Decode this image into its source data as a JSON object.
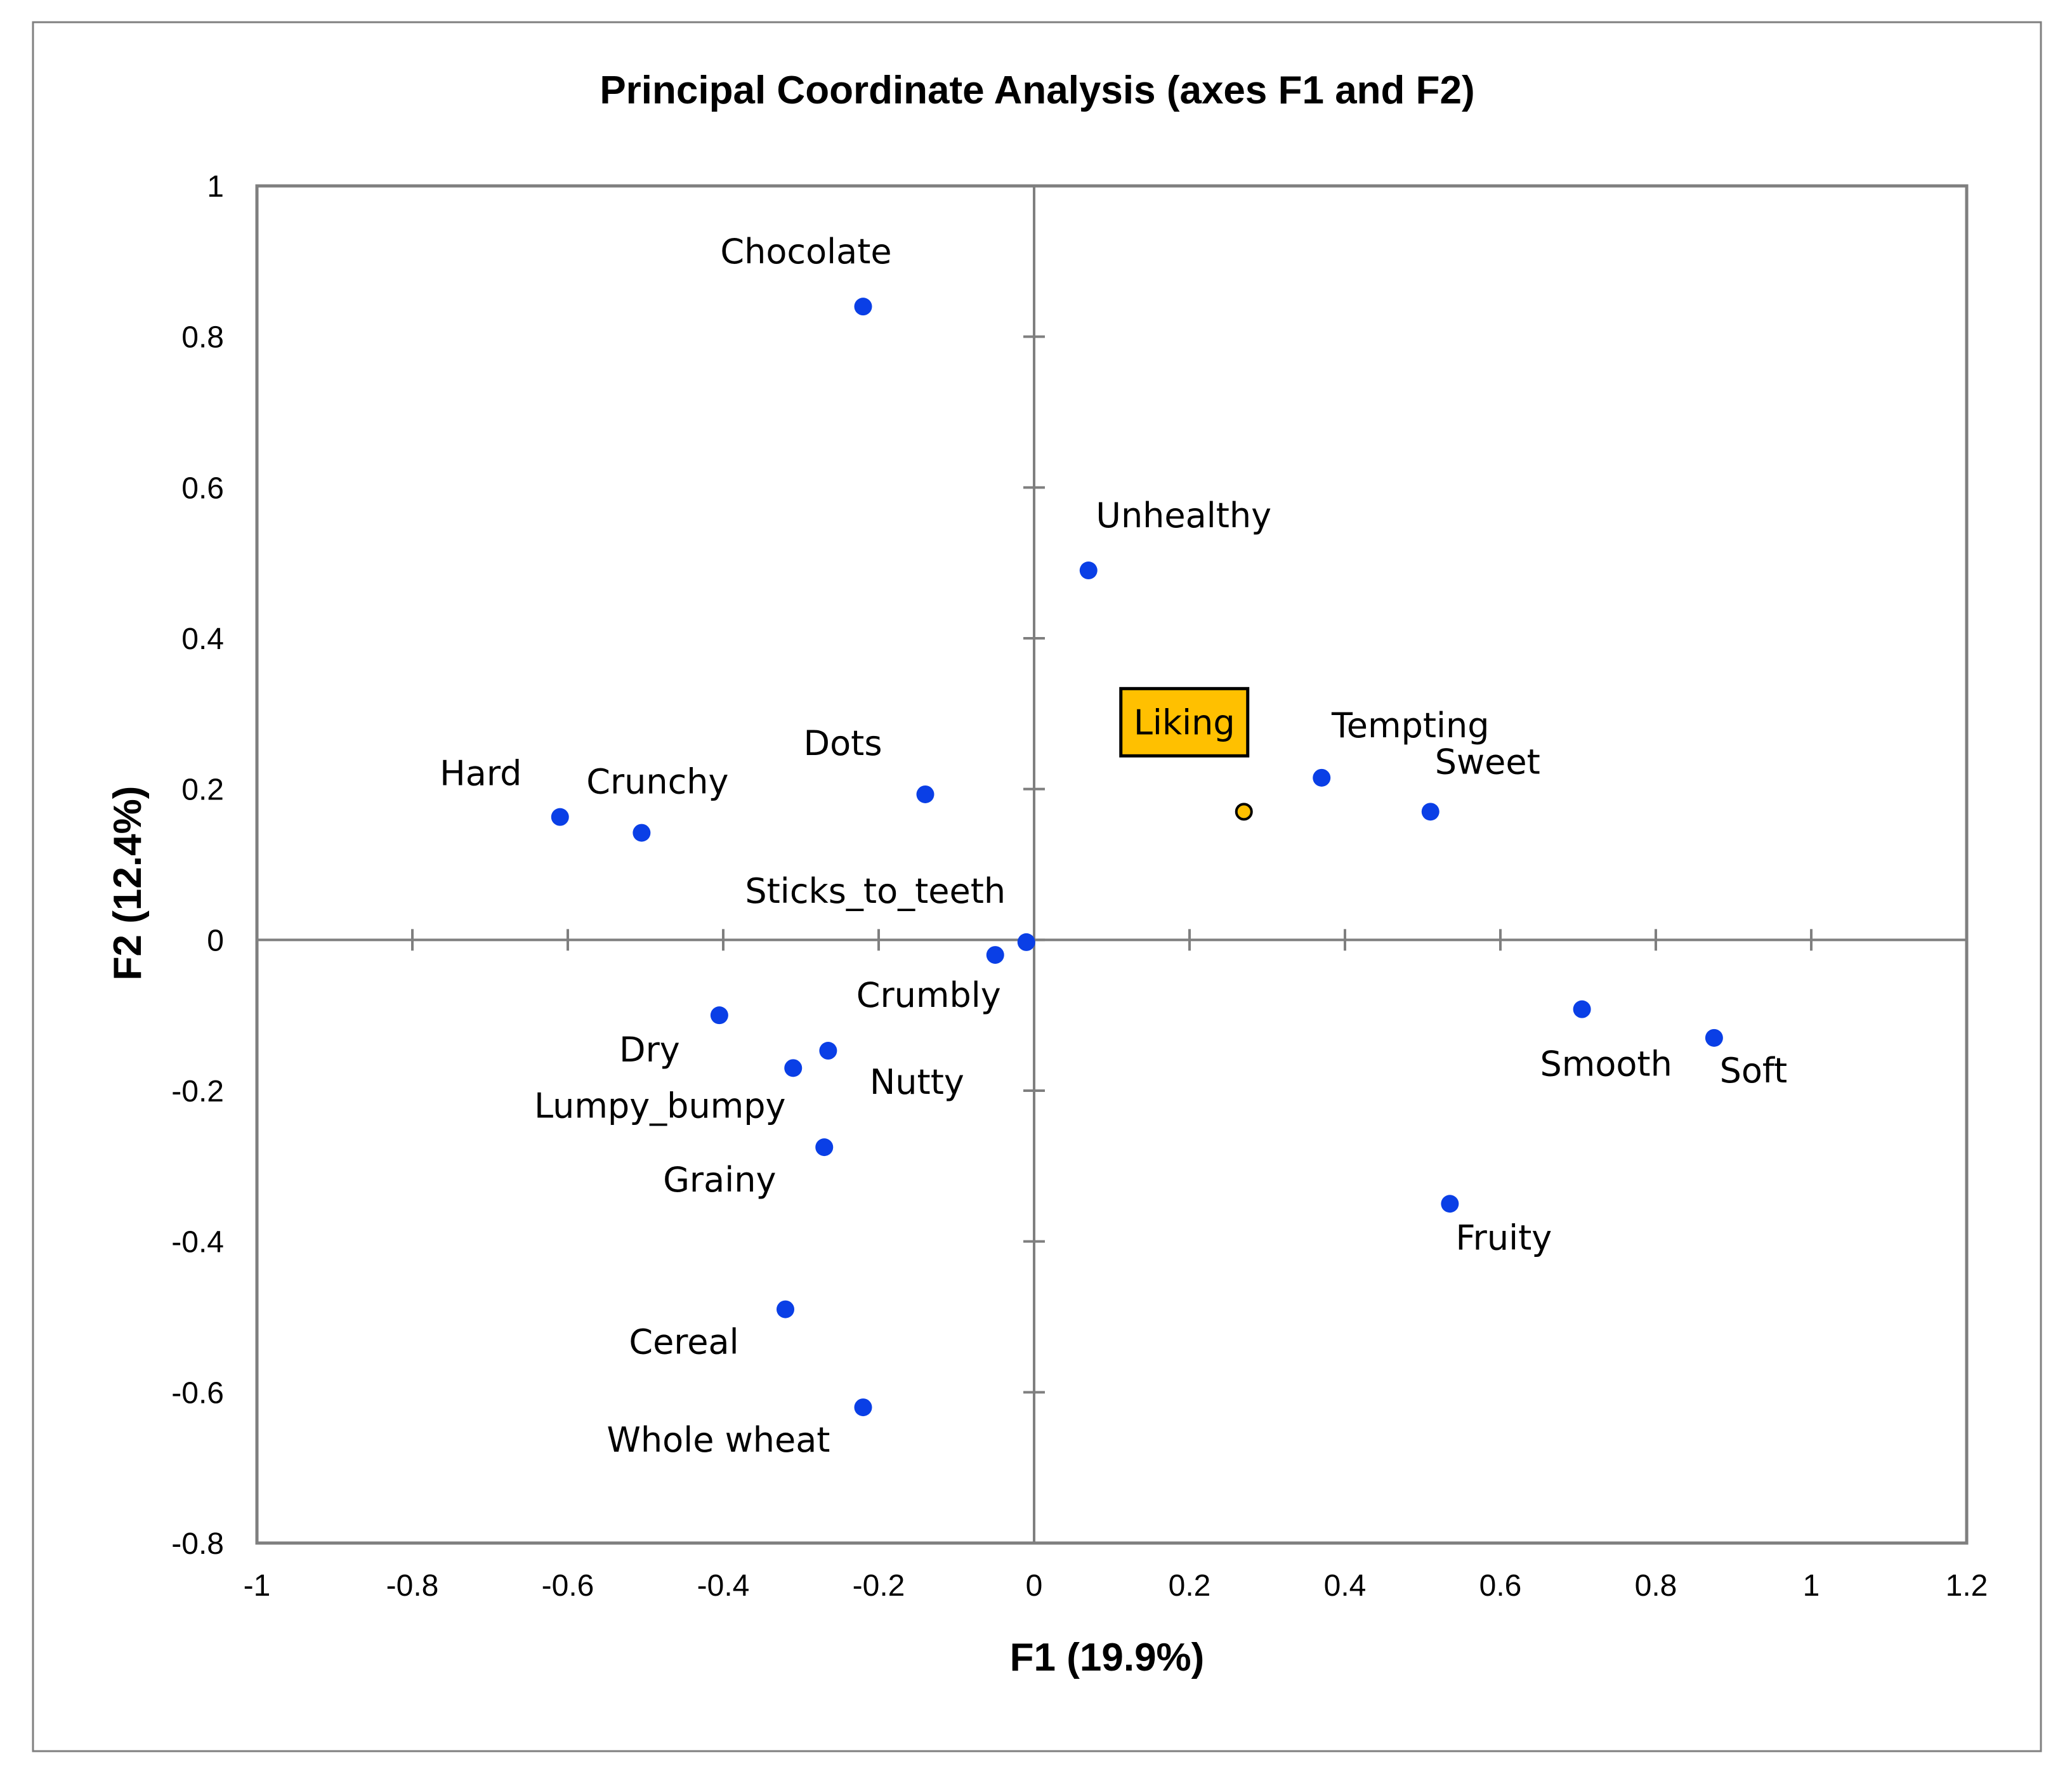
{
  "colors": {
    "point": "#0A3FE6",
    "highlight": "#FFC000",
    "axis": "#7F7F7F",
    "frame": "#7F7F7F"
  },
  "chart_data": {
    "type": "scatter",
    "title": "Principal Coordinate Analysis (axes F1 and F2)",
    "xlabel": "F1 (19.9%)",
    "ylabel": "F2 (12.4%)",
    "xlim": [
      -1,
      1.2
    ],
    "ylim": [
      -0.8,
      1
    ],
    "xticks": [
      -1,
      -0.8,
      -0.6,
      -0.4,
      -0.2,
      0,
      0.2,
      0.4,
      0.6,
      0.8,
      1,
      1.2
    ],
    "yticks": [
      -0.8,
      -0.6,
      -0.4,
      -0.2,
      0,
      0.2,
      0.4,
      0.6,
      0.8,
      1
    ],
    "xtick_labels": [
      "-1",
      "-0.8",
      "-0.6",
      "-0.4",
      "-0.2",
      "0",
      "0.2",
      "0.4",
      "0.6",
      "0.8",
      "1",
      "1.2"
    ],
    "ytick_labels": [
      "-0.8",
      "-0.6",
      "-0.4",
      "-0.2",
      "0",
      "0.2",
      "0.4",
      "0.6",
      "0.8",
      "1"
    ],
    "points": [
      {
        "label": "Chocolate",
        "x": -0.22,
        "y": 0.84
      },
      {
        "label": "Unhealthy",
        "x": 0.07,
        "y": 0.49
      },
      {
        "label": "Tempting",
        "x": 0.37,
        "y": 0.215
      },
      {
        "label": "Sweet",
        "x": 0.51,
        "y": 0.17
      },
      {
        "label": "Dots",
        "x": -0.14,
        "y": 0.193
      },
      {
        "label": "Hard",
        "x": -0.61,
        "y": 0.163
      },
      {
        "label": "Crunchy",
        "x": -0.505,
        "y": 0.142
      },
      {
        "label": "Sticks_to_teeth",
        "x": -0.01,
        "y": -0.003
      },
      {
        "label": "Crumbly",
        "x": -0.05,
        "y": -0.02
      },
      {
        "label": "Dry",
        "x": -0.405,
        "y": -0.1
      },
      {
        "label": "Nutty",
        "x": -0.265,
        "y": -0.147
      },
      {
        "label": "Lumpy_bumpy",
        "x": -0.31,
        "y": -0.17
      },
      {
        "label": "Grainy",
        "x": -0.27,
        "y": -0.275
      },
      {
        "label": "Cereal",
        "x": -0.32,
        "y": -0.49
      },
      {
        "label": "Whole wheat",
        "x": -0.22,
        "y": -0.62
      },
      {
        "label": "Smooth",
        "x": 0.705,
        "y": -0.092
      },
      {
        "label": "Soft",
        "x": 0.875,
        "y": -0.13
      },
      {
        "label": "Fruity",
        "x": 0.535,
        "y": -0.35
      }
    ],
    "highlight": {
      "label": "Liking",
      "x": 0.27,
      "y": 0.17
    }
  }
}
